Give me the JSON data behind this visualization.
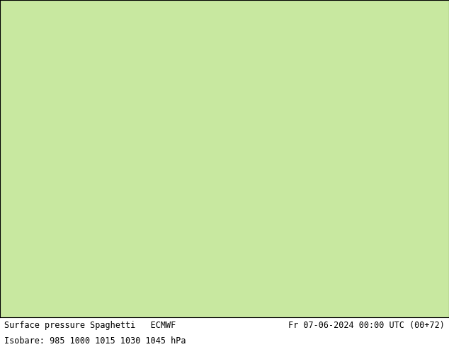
{
  "title_left": "Surface pressure Spaghetti   ECMWF",
  "title_right": "Fr 07-06-2024 00:00 UTC (00+72)",
  "subtitle": "Isobare: 985 1000 1015 1030 1045 hPa",
  "fig_width": 6.34,
  "fig_height": 4.9,
  "dpi": 100,
  "map_extent": [
    -135,
    -55,
    18,
    58
  ],
  "land_color": "#c8e8a0",
  "ocean_color": "#d8d8d8",
  "lake_color": "#d8d8d8",
  "border_color": "#666666",
  "state_color": "#888888",
  "footer_fontsize": 8.5,
  "isobar_values": [
    985,
    1000,
    1015,
    1030,
    1045
  ],
  "contour_linewidth": 0.8,
  "label_fontsize": 5,
  "ensemble_colors": [
    "#808080",
    "#ff0000",
    "#00cc00",
    "#0000ff",
    "#ff8800",
    "#cc00cc",
    "#00cccc",
    "#ffcc00",
    "#884400",
    "#004488",
    "#ff66aa",
    "#66ff66",
    "#6688ff",
    "#ffaa44",
    "#aa44ff",
    "#44ffcc",
    "#ff4444",
    "#44ff44",
    "#4444ff",
    "#ffff44",
    "#ff44ff",
    "#44ffff",
    "#884488",
    "#448844",
    "#448888",
    "#884444",
    "#ff8844",
    "#44ff88",
    "#8844ff",
    "#ff4488",
    "#88ff44",
    "#4488ff",
    "#ffaa88",
    "#88ffaa",
    "#aa88ff",
    "#cccc00",
    "#00cccc",
    "#cc00cc",
    "#cc4400",
    "#00cc44",
    "#0044cc",
    "#cc4488",
    "#44cc88",
    "#4488cc",
    "#884400",
    "#448800",
    "#004488",
    "#cc8844",
    "#88cc44",
    "#4488cc",
    "#ccaacc",
    "#aaccaa"
  ],
  "n_members": 51
}
